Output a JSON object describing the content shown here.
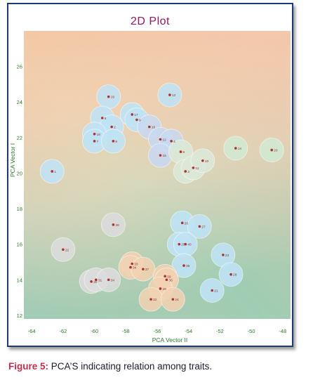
{
  "caption": {
    "label": "Figure 5:",
    "text": " PCA’S indicating relation among traits."
  },
  "colors": {
    "title": "#8b1a5c",
    "frame": "#1f3a73",
    "caption_label": "#c0304a",
    "point": "#b03030",
    "axis_text": "#2d7a2d"
  },
  "chart_data": {
    "type": "scatter",
    "title": "2D  Plot",
    "xlabel": "PCA Vector II",
    "ylabel": "PCA Vector I",
    "xlim": [
      -64.5,
      -47.5
    ],
    "ylim": [
      11.8,
      28
    ],
    "xticks": [
      -64,
      -62,
      -60,
      -58,
      -56,
      -54,
      -52,
      -50,
      -48
    ],
    "yticks": [
      12,
      14,
      16,
      18,
      20,
      22,
      24,
      26
    ],
    "grid": false,
    "background": "gradient",
    "points": [
      {
        "label": "1",
        "x": -62.7,
        "y": 20.1,
        "color": "#bfe3f5"
      },
      {
        "label": "19",
        "x": -59.1,
        "y": 24.3,
        "color": "#bfe3f5"
      },
      {
        "label": "5",
        "x": -59.5,
        "y": 23.1,
        "color": "#bfe3f5"
      },
      {
        "label": "2",
        "x": -58.9,
        "y": 22.6,
        "color": "#bfe3f5"
      },
      {
        "label": "17",
        "x": -57.6,
        "y": 23.3,
        "color": "#bfe3f5"
      },
      {
        "label": "9",
        "x": -57.3,
        "y": 23.0,
        "color": "#bfe3f5"
      },
      {
        "label": "18",
        "x": -60.0,
        "y": 22.2,
        "color": "#bfe3f5"
      },
      {
        "label": "7",
        "x": -60.0,
        "y": 21.8,
        "color": "#bfe3f5"
      },
      {
        "label": "8",
        "x": -58.8,
        "y": 21.8,
        "color": "#bfe3f5"
      },
      {
        "label": "16",
        "x": -56.5,
        "y": 22.6,
        "color": "#c8d8ef"
      },
      {
        "label": "12",
        "x": -55.8,
        "y": 21.9,
        "color": "#c8d8ef"
      },
      {
        "label": "4",
        "x": -55.1,
        "y": 21.8,
        "color": "#c8d8ef"
      },
      {
        "label": "15",
        "x": -55.8,
        "y": 21.0,
        "color": "#c8d8ef"
      },
      {
        "label": "13",
        "x": -55.2,
        "y": 24.4,
        "color": "#bfe3f5"
      },
      {
        "label": "6",
        "x": -54.5,
        "y": 21.2,
        "color": "#dbe8d8"
      },
      {
        "label": "3",
        "x": -54.2,
        "y": 20.1,
        "color": "#dbe8d8"
      },
      {
        "label": "11",
        "x": -53.7,
        "y": 20.3,
        "color": "#dbe8d8"
      },
      {
        "label": "10",
        "x": -53.1,
        "y": 20.7,
        "color": "#dbe8d8"
      },
      {
        "label": "14",
        "x": -51.0,
        "y": 21.4,
        "color": "#cfe9d2"
      },
      {
        "label": "20",
        "x": -48.7,
        "y": 21.3,
        "color": "#cfe9d2"
      },
      {
        "label": "38",
        "x": -58.8,
        "y": 17.1,
        "color": "#dcdcdc"
      },
      {
        "label": "22",
        "x": -62.0,
        "y": 15.7,
        "color": "#dcdcdc"
      },
      {
        "label": "26",
        "x": -54.4,
        "y": 17.2,
        "color": "#bfe3f5"
      },
      {
        "label": "27",
        "x": -53.3,
        "y": 17.0,
        "color": "#bfe3f5"
      },
      {
        "label": "25",
        "x": -54.6,
        "y": 16.0,
        "color": "#bfe3f5"
      },
      {
        "label": "40",
        "x": -54.2,
        "y": 16.0,
        "color": "#bfe3f5"
      },
      {
        "label": "23",
        "x": -51.8,
        "y": 15.4,
        "color": "#bfe3f5"
      },
      {
        "label": "35",
        "x": -54.3,
        "y": 14.8,
        "color": "#bfe3f5"
      },
      {
        "label": "28",
        "x": -51.3,
        "y": 14.3,
        "color": "#bfe3f5"
      },
      {
        "label": "21",
        "x": -52.5,
        "y": 13.4,
        "color": "#bfe3f5"
      },
      {
        "label": "33",
        "x": -57.6,
        "y": 14.9,
        "color": "#f1d2b2"
      },
      {
        "label": "34",
        "x": -57.7,
        "y": 14.7,
        "color": "#f1d2b2"
      },
      {
        "label": "37",
        "x": -56.9,
        "y": 14.6,
        "color": "#f1d2b2"
      },
      {
        "label": "39",
        "x": -55.5,
        "y": 14.2,
        "color": "#f1d2b2"
      },
      {
        "label": "36",
        "x": -55.4,
        "y": 14.0,
        "color": "#f1d2b2"
      },
      {
        "label": "29",
        "x": -55.8,
        "y": 13.5,
        "color": "#f1d2b2"
      },
      {
        "label": "32",
        "x": -56.4,
        "y": 12.9,
        "color": "#f1d2b2"
      },
      {
        "label": "24",
        "x": -55.0,
        "y": 12.9,
        "color": "#f1d2b2"
      },
      {
        "label": "30",
        "x": -60.2,
        "y": 13.9,
        "color": "#dcdcdc"
      },
      {
        "label": "31",
        "x": -59.9,
        "y": 14.0,
        "color": "#dcdcdc"
      },
      {
        "label": "34",
        "x": -59.1,
        "y": 14.0,
        "color": "#dcdcdc"
      }
    ]
  }
}
